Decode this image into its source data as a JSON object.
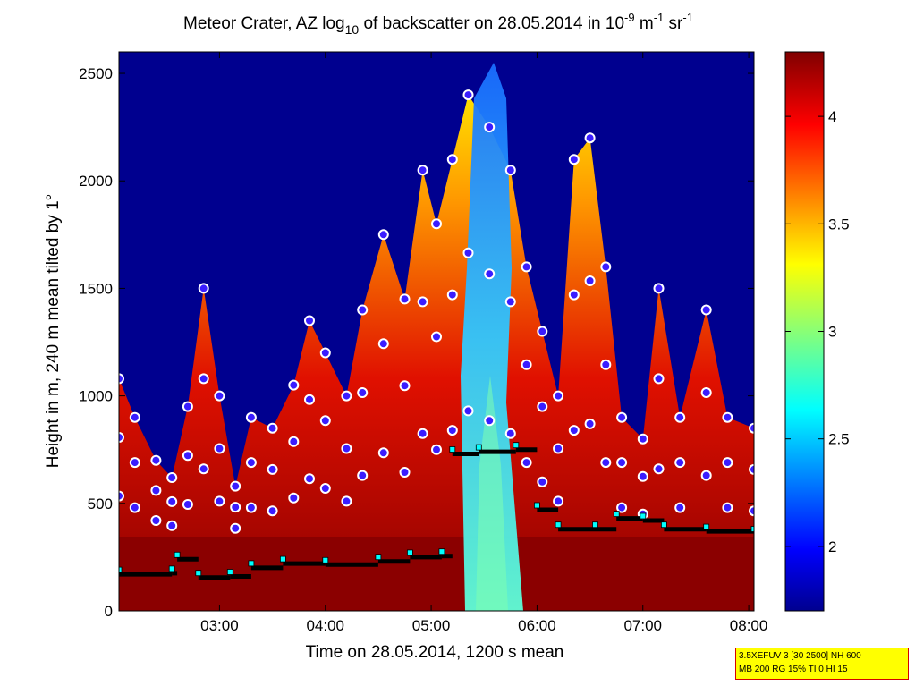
{
  "chart_data": {
    "type": "heatmap",
    "title_parts": {
      "prefix": "Meteor Crater, AZ log",
      "log_base": "10",
      "middle": " of backscatter on 28.05.2014 in 10",
      "exp1": "-9",
      "unit1": " m",
      "exp2": "-1",
      "unit2": " sr",
      "exp3": "-1"
    },
    "xlabel": "Time on 28.05.2014, 1200 s mean",
    "ylabel": "Height in m, 240 m mean tilted by 1°",
    "xlim_hours": [
      2.05,
      8.05
    ],
    "ylim": [
      0,
      2600
    ],
    "x_ticks": [
      {
        "value": 3,
        "label": "03:00"
      },
      {
        "value": 4,
        "label": "04:00"
      },
      {
        "value": 5,
        "label": "05:00"
      },
      {
        "value": 6,
        "label": "06:00"
      },
      {
        "value": 7,
        "label": "07:00"
      },
      {
        "value": 8,
        "label": "08:00"
      }
    ],
    "y_ticks": [
      0,
      500,
      1000,
      1500,
      2000,
      2500
    ],
    "colorbar": {
      "range": [
        1.7,
        4.3
      ],
      "ticks": [
        2,
        2.5,
        3,
        3.5,
        4
      ],
      "colormap": "jet"
    },
    "cloud_top_profile": [
      {
        "t": 2.05,
        "h": 1080
      },
      {
        "t": 2.2,
        "h": 900
      },
      {
        "t": 2.4,
        "h": 700
      },
      {
        "t": 2.55,
        "h": 620
      },
      {
        "t": 2.7,
        "h": 950
      },
      {
        "t": 2.85,
        "h": 1500
      },
      {
        "t": 3.0,
        "h": 1000
      },
      {
        "t": 3.15,
        "h": 580
      },
      {
        "t": 3.3,
        "h": 900
      },
      {
        "t": 3.5,
        "h": 850
      },
      {
        "t": 3.7,
        "h": 1050
      },
      {
        "t": 3.85,
        "h": 1350
      },
      {
        "t": 4.0,
        "h": 1200
      },
      {
        "t": 4.2,
        "h": 1000
      },
      {
        "t": 4.35,
        "h": 1400
      },
      {
        "t": 4.55,
        "h": 1750
      },
      {
        "t": 4.75,
        "h": 1450
      },
      {
        "t": 4.92,
        "h": 2050
      },
      {
        "t": 5.05,
        "h": 1800
      },
      {
        "t": 5.2,
        "h": 2100
      },
      {
        "t": 5.35,
        "h": 2400
      },
      {
        "t": 5.55,
        "h": 2250
      },
      {
        "t": 5.75,
        "h": 2050
      },
      {
        "t": 5.9,
        "h": 1600
      },
      {
        "t": 6.05,
        "h": 1300
      },
      {
        "t": 6.2,
        "h": 1000
      },
      {
        "t": 6.35,
        "h": 2100
      },
      {
        "t": 6.5,
        "h": 2200
      },
      {
        "t": 6.65,
        "h": 1600
      },
      {
        "t": 6.8,
        "h": 900
      },
      {
        "t": 7.0,
        "h": 800
      },
      {
        "t": 7.15,
        "h": 1500
      },
      {
        "t": 7.35,
        "h": 900
      },
      {
        "t": 7.6,
        "h": 1400
      },
      {
        "t": 7.8,
        "h": 900
      },
      {
        "t": 8.05,
        "h": 850
      }
    ],
    "mixing_layer_series": [
      {
        "t": 2.05,
        "h": 170
      },
      {
        "t": 2.55,
        "h": 175
      },
      {
        "t": 2.6,
        "h": 240
      },
      {
        "t": 2.8,
        "h": 155
      },
      {
        "t": 3.1,
        "h": 160
      },
      {
        "t": 3.3,
        "h": 200
      },
      {
        "t": 3.6,
        "h": 220
      },
      {
        "t": 4.0,
        "h": 215
      },
      {
        "t": 4.5,
        "h": 230
      },
      {
        "t": 4.8,
        "h": 250
      },
      {
        "t": 5.1,
        "h": 255
      },
      {
        "t": 5.2,
        "h": 730
      },
      {
        "t": 5.45,
        "h": 740
      },
      {
        "t": 5.8,
        "h": 750
      },
      {
        "t": 6.0,
        "h": 470
      },
      {
        "t": 6.2,
        "h": 380
      },
      {
        "t": 6.55,
        "h": 380
      },
      {
        "t": 6.75,
        "h": 430
      },
      {
        "t": 7.0,
        "h": 420
      },
      {
        "t": 7.2,
        "h": 380
      },
      {
        "t": 7.6,
        "h": 370
      },
      {
        "t": 8.05,
        "h": 360
      }
    ]
  },
  "info_box": {
    "line1": "3.5XEFUV 3 [30 2500] NH 600",
    "line2": "MB 200 RG 15% TI 0 HI 15"
  }
}
